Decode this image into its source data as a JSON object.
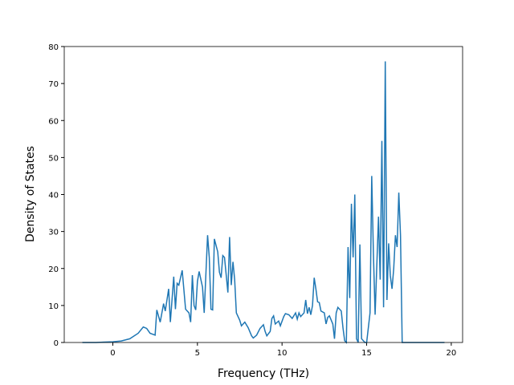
{
  "chart_data": {
    "type": "line",
    "x_label": "Frequency (THz)",
    "y_label": "Density of States",
    "x": [
      -1.8,
      -1.0,
      0.0,
      0.5,
      1.0,
      1.5,
      1.8,
      2.0,
      2.2,
      2.5,
      2.6,
      2.8,
      3.0,
      3.1,
      3.3,
      3.4,
      3.6,
      3.7,
      3.8,
      3.9,
      4.1,
      4.3,
      4.5,
      4.6,
      4.7,
      4.8,
      4.9,
      5.0,
      5.1,
      5.3,
      5.4,
      5.6,
      5.7,
      5.8,
      5.9,
      6.0,
      6.2,
      6.3,
      6.4,
      6.5,
      6.6,
      6.8,
      6.9,
      7.0,
      7.1,
      7.2,
      7.3,
      7.5,
      7.6,
      7.8,
      8.0,
      8.2,
      8.3,
      8.5,
      8.7,
      8.9,
      9.0,
      9.1,
      9.3,
      9.4,
      9.5,
      9.6,
      9.8,
      9.9,
      10.1,
      10.2,
      10.4,
      10.6,
      10.8,
      10.9,
      11.0,
      11.1,
      11.3,
      11.4,
      11.5,
      11.6,
      11.7,
      11.8,
      11.9,
      12.0,
      12.1,
      12.2,
      12.3,
      12.5,
      12.6,
      12.7,
      12.8,
      13.0,
      13.1,
      13.2,
      13.3,
      13.5,
      13.6,
      13.7,
      13.8,
      13.9,
      14.0,
      14.1,
      14.2,
      14.3,
      14.4,
      14.5,
      14.6,
      14.7,
      14.9,
      15.0,
      15.2,
      15.3,
      15.4,
      15.5,
      15.7,
      15.8,
      15.9,
      16.0,
      16.1,
      16.2,
      16.3,
      16.4,
      16.5,
      16.6,
      16.7,
      16.8,
      16.9,
      17.0,
      17.1,
      17.5,
      19.6
    ],
    "series": [
      {
        "color": "#1f77b4",
        "values": [
          0,
          0,
          0.2,
          0.4,
          1,
          2.5,
          4.2,
          3.8,
          2.5,
          2,
          8.8,
          5.5,
          10.5,
          8.5,
          14.5,
          5.5,
          17.8,
          9,
          16,
          15.5,
          19.5,
          9,
          8,
          5.5,
          18.2,
          10,
          8.8,
          16.5,
          19.2,
          15,
          8,
          29,
          23,
          9,
          8.8,
          28,
          24.5,
          19,
          17.5,
          23.5,
          23,
          13.5,
          28.5,
          15.5,
          21.8,
          17,
          8,
          6,
          4.5,
          5.5,
          4,
          1.8,
          1.2,
          2,
          3.8,
          4.8,
          3,
          1.8,
          3,
          6.5,
          7.2,
          5,
          5.8,
          4.5,
          7,
          7.8,
          7.5,
          6.5,
          8,
          6.3,
          8,
          7,
          8,
          11.5,
          7.8,
          9.5,
          7.5,
          10,
          17.5,
          14.5,
          11,
          10.8,
          8.5,
          8,
          5,
          6.8,
          7.2,
          5,
          1,
          8,
          9.5,
          8.5,
          4,
          0.5,
          0,
          25.8,
          12,
          37.5,
          23,
          40,
          1,
          0,
          26.5,
          1,
          0,
          0,
          8,
          45,
          24,
          7.5,
          34,
          17,
          54.5,
          9.5,
          76,
          11.5,
          26.8,
          18,
          14.5,
          20,
          29,
          25.8,
          40.5,
          29,
          0,
          0,
          0
        ]
      }
    ],
    "xlim": [
      -2.87,
      20.67
    ],
    "ylim": [
      0,
      80
    ],
    "xticks": [
      0,
      5,
      10,
      15,
      20
    ],
    "yticks": [
      0,
      10,
      20,
      30,
      40,
      50,
      60,
      70,
      80
    ]
  }
}
